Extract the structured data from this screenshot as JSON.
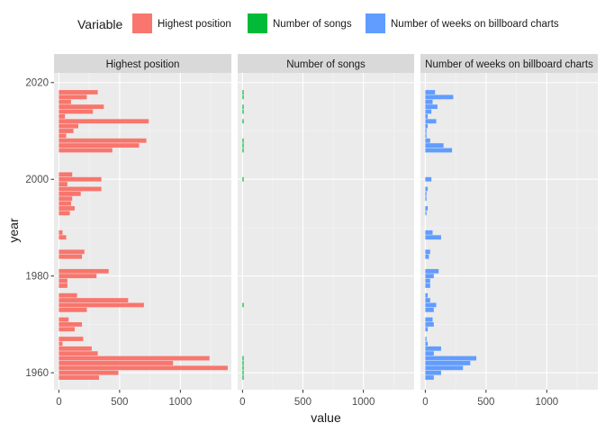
{
  "legend": {
    "title": "Variable",
    "items": [
      {
        "label": "Highest position",
        "color": "#F8766D"
      },
      {
        "label": "Number of songs",
        "color": "#00BA38"
      },
      {
        "label": "Number of weeks on billboard charts",
        "color": "#619CFF"
      }
    ]
  },
  "axis": {
    "xlabel": "value",
    "ylabel": "year"
  },
  "chart_data": {
    "type": "bar",
    "orientation": "horizontal",
    "facets": [
      "Highest position",
      "Number of songs",
      "Number of weeks on billboard charts"
    ],
    "x_ticks": [
      0,
      500,
      1000
    ],
    "xlim": [
      -40,
      1420
    ],
    "y_ticks": [
      1960,
      1980,
      2000,
      2020
    ],
    "ylim": [
      1956.5,
      2022
    ],
    "grid": true,
    "legend_position": "top",
    "series": [
      {
        "name": "Highest position",
        "color": "#F8766D",
        "points": [
          {
            "year": 2018,
            "value": 320
          },
          {
            "year": 2017,
            "value": 230
          },
          {
            "year": 2016,
            "value": 100
          },
          {
            "year": 2015,
            "value": 370
          },
          {
            "year": 2014,
            "value": 280
          },
          {
            "year": 2013,
            "value": 50
          },
          {
            "year": 2012,
            "value": 740
          },
          {
            "year": 2011,
            "value": 160
          },
          {
            "year": 2010,
            "value": 120
          },
          {
            "year": 2009,
            "value": 60
          },
          {
            "year": 2008,
            "value": 720
          },
          {
            "year": 2007,
            "value": 660
          },
          {
            "year": 2006,
            "value": 440
          },
          {
            "year": 2001,
            "value": 110
          },
          {
            "year": 2000,
            "value": 350
          },
          {
            "year": 1999,
            "value": 70
          },
          {
            "year": 1998,
            "value": 350
          },
          {
            "year": 1997,
            "value": 180
          },
          {
            "year": 1996,
            "value": 110
          },
          {
            "year": 1995,
            "value": 100
          },
          {
            "year": 1994,
            "value": 130
          },
          {
            "year": 1993,
            "value": 90
          },
          {
            "year": 1989,
            "value": 30
          },
          {
            "year": 1988,
            "value": 60
          },
          {
            "year": 1985,
            "value": 210
          },
          {
            "year": 1984,
            "value": 190
          },
          {
            "year": 1981,
            "value": 410
          },
          {
            "year": 1980,
            "value": 310
          },
          {
            "year": 1979,
            "value": 70
          },
          {
            "year": 1978,
            "value": 70
          },
          {
            "year": 1976,
            "value": 150
          },
          {
            "year": 1975,
            "value": 570
          },
          {
            "year": 1974,
            "value": 700
          },
          {
            "year": 1973,
            "value": 230
          },
          {
            "year": 1971,
            "value": 80
          },
          {
            "year": 1970,
            "value": 190
          },
          {
            "year": 1969,
            "value": 130
          },
          {
            "year": 1967,
            "value": 200
          },
          {
            "year": 1966,
            "value": 30
          },
          {
            "year": 1965,
            "value": 270
          },
          {
            "year": 1964,
            "value": 320
          },
          {
            "year": 1963,
            "value": 1240
          },
          {
            "year": 1962,
            "value": 940
          },
          {
            "year": 1961,
            "value": 1390
          },
          {
            "year": 1960,
            "value": 490
          },
          {
            "year": 1959,
            "value": 330
          }
        ]
      },
      {
        "name": "Number of songs",
        "color": "#00BA38",
        "points": [
          {
            "year": 2018,
            "value": 2
          },
          {
            "year": 2017,
            "value": 1
          },
          {
            "year": 2015,
            "value": 1
          },
          {
            "year": 2014,
            "value": 1
          },
          {
            "year": 2012,
            "value": 1
          },
          {
            "year": 2008,
            "value": 2
          },
          {
            "year": 2007,
            "value": 2
          },
          {
            "year": 2006,
            "value": 1
          },
          {
            "year": 2000,
            "value": 1
          },
          {
            "year": 1974,
            "value": 1
          },
          {
            "year": 1963,
            "value": 2
          },
          {
            "year": 1962,
            "value": 2
          },
          {
            "year": 1961,
            "value": 2
          },
          {
            "year": 1960,
            "value": 1
          },
          {
            "year": 1959,
            "value": 1
          }
        ]
      },
      {
        "name": "Number of weeks on billboard charts",
        "color": "#619CFF",
        "points": [
          {
            "year": 2018,
            "value": 80
          },
          {
            "year": 2017,
            "value": 230
          },
          {
            "year": 2016,
            "value": 60
          },
          {
            "year": 2015,
            "value": 100
          },
          {
            "year": 2014,
            "value": 50
          },
          {
            "year": 2013,
            "value": 20
          },
          {
            "year": 2012,
            "value": 90
          },
          {
            "year": 2011,
            "value": 20
          },
          {
            "year": 2010,
            "value": 10
          },
          {
            "year": 2009,
            "value": 10
          },
          {
            "year": 2008,
            "value": 40
          },
          {
            "year": 2007,
            "value": 150
          },
          {
            "year": 2006,
            "value": 220
          },
          {
            "year": 2000,
            "value": 50
          },
          {
            "year": 1998,
            "value": 20
          },
          {
            "year": 1997,
            "value": 10
          },
          {
            "year": 1996,
            "value": 10
          },
          {
            "year": 1994,
            "value": 20
          },
          {
            "year": 1993,
            "value": 10
          },
          {
            "year": 1989,
            "value": 60
          },
          {
            "year": 1988,
            "value": 130
          },
          {
            "year": 1985,
            "value": 40
          },
          {
            "year": 1984,
            "value": 30
          },
          {
            "year": 1981,
            "value": 110
          },
          {
            "year": 1980,
            "value": 70
          },
          {
            "year": 1979,
            "value": 40
          },
          {
            "year": 1978,
            "value": 40
          },
          {
            "year": 1976,
            "value": 20
          },
          {
            "year": 1975,
            "value": 40
          },
          {
            "year": 1974,
            "value": 90
          },
          {
            "year": 1973,
            "value": 70
          },
          {
            "year": 1971,
            "value": 60
          },
          {
            "year": 1970,
            "value": 70
          },
          {
            "year": 1969,
            "value": 20
          },
          {
            "year": 1967,
            "value": 10
          },
          {
            "year": 1966,
            "value": 20
          },
          {
            "year": 1965,
            "value": 130
          },
          {
            "year": 1964,
            "value": 70
          },
          {
            "year": 1963,
            "value": 420
          },
          {
            "year": 1962,
            "value": 370
          },
          {
            "year": 1961,
            "value": 310
          },
          {
            "year": 1960,
            "value": 130
          },
          {
            "year": 1959,
            "value": 70
          }
        ]
      }
    ]
  }
}
